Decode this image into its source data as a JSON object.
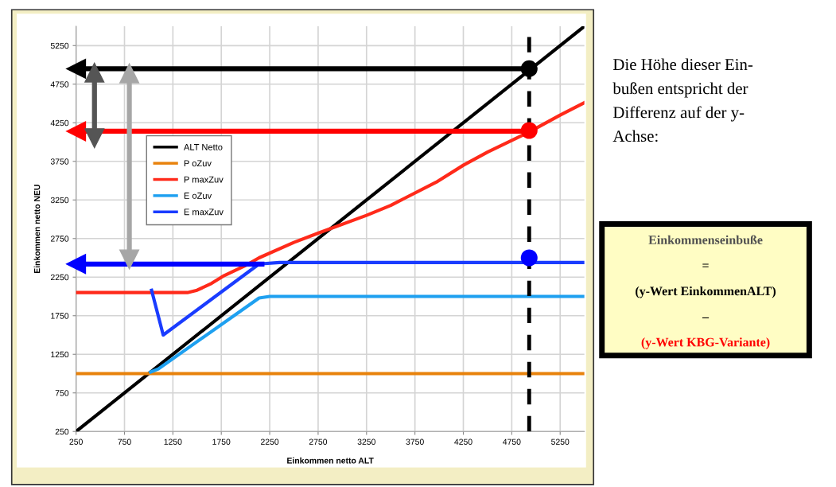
{
  "chart_data": {
    "type": "line",
    "xlabel": "Einkommen netto ALT",
    "ylabel": "Einkommen netto NEU",
    "xlim": [
      250,
      5500
    ],
    "ylim": [
      250,
      5500
    ],
    "xticks": [
      250,
      750,
      1250,
      1750,
      2250,
      2750,
      3250,
      3750,
      4250,
      4750,
      5250
    ],
    "yticks": [
      250,
      750,
      1250,
      1750,
      2250,
      2750,
      3250,
      3750,
      4250,
      4750,
      5250
    ],
    "grid": true,
    "legend": "left",
    "marker": "none",
    "line_style": "solid",
    "series": [
      {
        "name": "ALT Netto",
        "color": "#000000",
        "x": [
          250,
          5500
        ],
        "values": [
          250,
          5500
        ]
      },
      {
        "name": "P oZuv",
        "color": "#e8820c",
        "x": [
          250,
          5500
        ],
        "values": [
          1000,
          1000
        ]
      },
      {
        "name": "P maxZuv",
        "color": "#ff2a1a",
        "x": [
          250,
          1400,
          1500,
          1650,
          1780,
          2000,
          2140,
          2500,
          2750,
          3250,
          3500,
          3970,
          4250,
          4500,
          4930,
          5250,
          5500
        ],
        "values": [
          2050,
          2050,
          2080,
          2170,
          2270,
          2400,
          2500,
          2700,
          2820,
          3050,
          3180,
          3480,
          3700,
          3870,
          4130,
          4350,
          4510
        ]
      },
      {
        "name": "E oZuv",
        "color": "#1ea0f0",
        "x": [
          1020,
          1100,
          2140,
          2250,
          5500
        ],
        "values": [
          1020,
          1060,
          1980,
          2000,
          2000
        ]
      },
      {
        "name": "E maxZuv",
        "color": "#1a3cff",
        "x": [
          1030,
          1150,
          2140,
          2350,
          5500
        ],
        "values": [
          2080,
          1500,
          2420,
          2440,
          2440
        ]
      },
      {
        "type": "line",
        "color": "#000000",
        "marker": "triangle",
        "x": [
          4930,
          250
        ],
        "values": [
          4950,
          4950
        ]
      },
      {
        "type": "line",
        "color": "#ff0000",
        "marker": "triangle",
        "x": [
          4930,
          250
        ],
        "values": [
          4140,
          4140
        ]
      },
      {
        "type": "line",
        "color": "#0000ff",
        "marker": "triangle",
        "x": [
          2170,
          250
        ],
        "values": [
          2420,
          2420
        ]
      },
      {
        "type": "line",
        "color": "#555555",
        "marker": "triangle",
        "x": [
          440,
          440
        ],
        "values": [
          4900,
          4050
        ]
      },
      {
        "type": "line",
        "color": "#a6a6a6",
        "marker": "triangle",
        "x": [
          800,
          800
        ],
        "values": [
          4890,
          2480
        ]
      },
      {
        "type": "scatter",
        "marker": "circle",
        "colors": [
          "#000000",
          "#ff0000",
          "#0000ff"
        ],
        "x": [
          4930,
          4930,
          4930
        ],
        "values": [
          4950,
          4150,
          2500
        ]
      }
    ],
    "ref_lines": [
      {
        "axis": "x",
        "value": 4930,
        "color": "#000000",
        "line_style": "dashed"
      }
    ],
    "annotations": [
      "Die Höhe dieser Ein-\nbußen entspricht der\nDifferenz auf der y-\nAchse:",
      "Einkommenseinbuße",
      "=",
      "(y-Wert EinkommenALT)",
      "–",
      "(y-Wert KBG-Variante)"
    ]
  }
}
